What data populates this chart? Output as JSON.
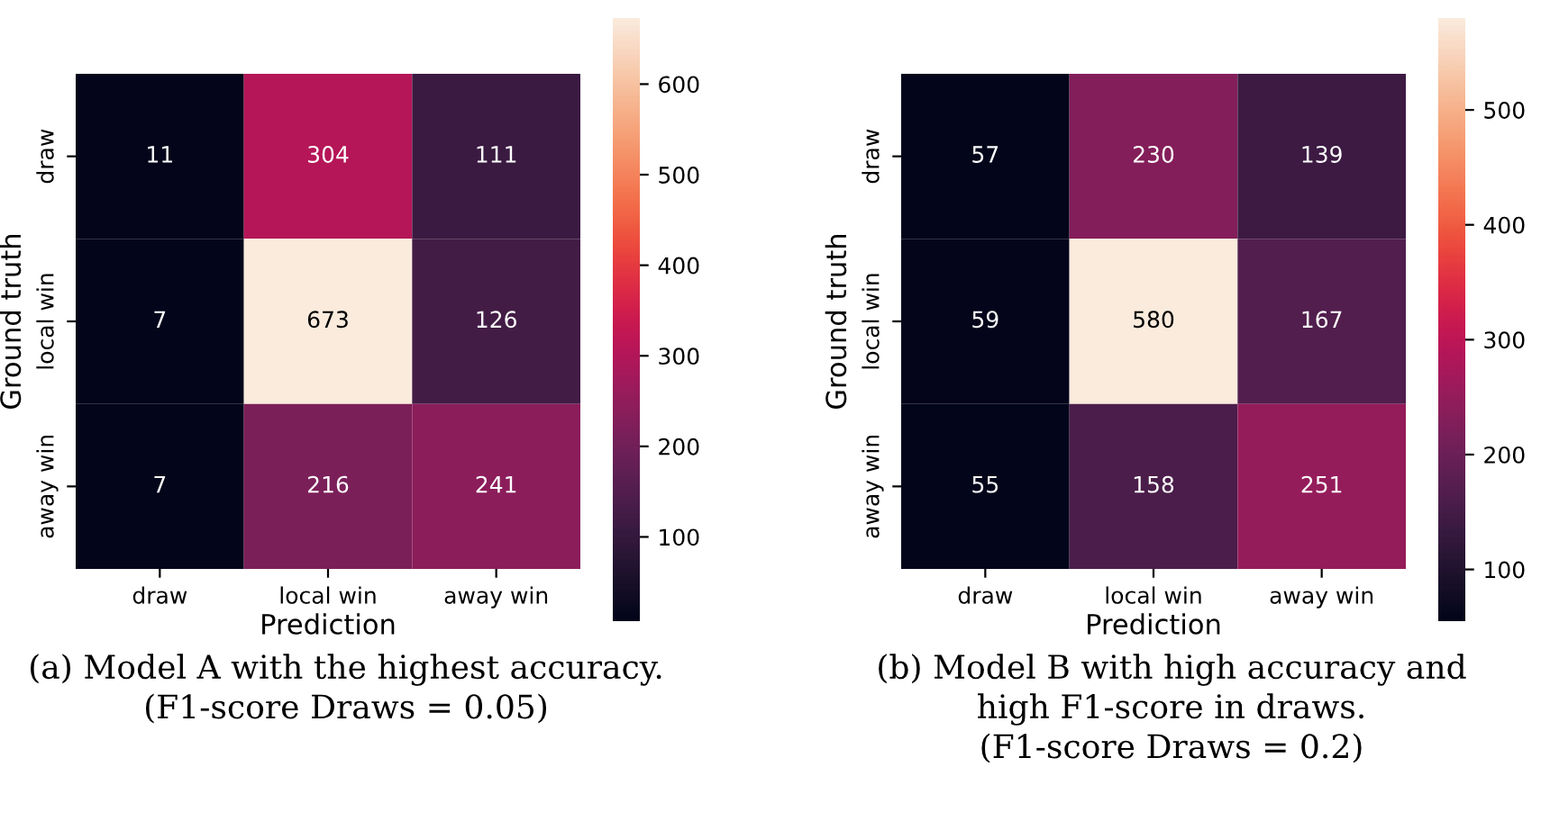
{
  "chart_data": [
    {
      "type": "heatmap",
      "xlabel": "Prediction",
      "ylabel": "Ground truth",
      "categories": [
        "draw",
        "local win",
        "away win"
      ],
      "y_categories": [
        "draw",
        "local win",
        "away win"
      ],
      "cells": [
        [
          11,
          304,
          111
        ],
        [
          7,
          673,
          126
        ],
        [
          7,
          216,
          241
        ]
      ],
      "data_labels": true,
      "clim": [
        7,
        673
      ],
      "cticks": [
        100,
        200,
        300,
        400,
        500,
        600
      ],
      "annotations": [
        "(a) Model A with the highest accuracy.",
        "(F1-score Draws = 0.05)"
      ]
    },
    {
      "type": "heatmap",
      "xlabel": "Prediction",
      "ylabel": "Ground truth",
      "categories": [
        "draw",
        "local win",
        "away win"
      ],
      "y_categories": [
        "draw",
        "local win",
        "away win"
      ],
      "cells": [
        [
          57,
          230,
          139
        ],
        [
          59,
          580,
          167
        ],
        [
          55,
          158,
          251
        ]
      ],
      "data_labels": true,
      "clim": [
        55,
        580
      ],
      "cticks": [
        100,
        200,
        300,
        400,
        500
      ],
      "annotations": [
        "(b) Model B with high accuracy and",
        "high F1-score in draws.",
        "(F1-score Draws = 0.2)"
      ]
    }
  ]
}
